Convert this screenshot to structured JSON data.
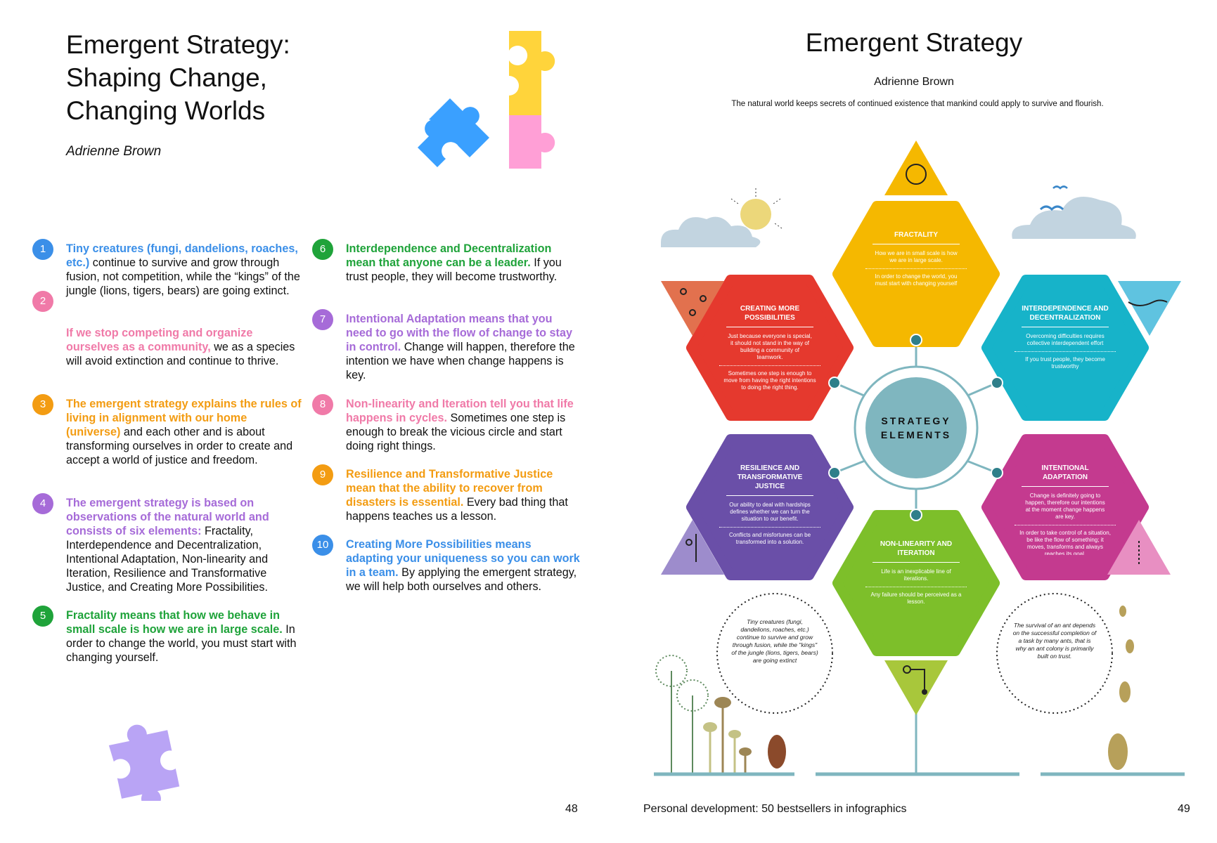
{
  "left": {
    "title_lines": [
      "Emergent Strategy:",
      "Shaping Change,",
      "Changing Worlds"
    ],
    "author": "Adrienne Brown",
    "page_number": "48",
    "items": [
      {
        "num": "1",
        "highlight": "Tiny creatures (fungi, dandelions, roaches, etc.)",
        "rest": " continue to survive and grow through fusion, not competition, while the “kings” of the jungle (lions, tigers, bears) are going extinct.",
        "color": "#3b8fe8"
      },
      {
        "num": "2",
        "highlight": "If we stop competing and organize ourselves as a community,",
        "rest": " we as a species will avoid extinction and continue to thrive.",
        "color": "#f07aa8"
      },
      {
        "num": "3",
        "highlight": "The emergent strategy explains the rules of living in alignment with our home (universe)",
        "rest": " and each other and is about transforming ourselves in order to create and accept a world of justice and freedom.",
        "color": "#f39c12"
      },
      {
        "num": "4",
        "highlight": "The emergent strategy is based on observations of the natural world and consists of six elements:",
        "rest": " Fractality, Interdependence and Decentralization, Intentional Adaptation, Non-linearity and Iteration, Resilience and Transformative Justice, and Creating More Possibilities.",
        "color": "#a66bd8"
      },
      {
        "num": "5",
        "highlight": "Fractality means that how we behave in small scale is how we are in large scale.",
        "rest": " In order to change the world, you must start with changing yourself.",
        "color": "#1fa33a"
      },
      {
        "num": "6",
        "highlight": "Interdependence and Decentralization mean that anyone can be a leader.",
        "rest": " If you trust people, they will become trustworthy.",
        "color": "#1fa33a"
      },
      {
        "num": "7",
        "highlight": "Intentional Adaptation means that you need to go with the flow of change to stay in control.",
        "rest": " Change will happen, therefore the intention we have when change happens is key.",
        "color": "#a66bd8"
      },
      {
        "num": "8",
        "highlight": "Non-linearity and Iteration tell you that life happens in cycles.",
        "rest": " Sometimes one step is enough to break the vicious circle and start doing right things.",
        "color": "#f07aa8"
      },
      {
        "num": "9",
        "highlight": "Resilience and Transformative Justice mean that the ability to recover from disasters is essential.",
        "rest": " Every bad thing that happens teaches us a lesson.",
        "color": "#f39c12"
      },
      {
        "num": "10",
        "highlight": "Creating More Possibilities means adapting your uniqueness so you can work in a team.",
        "rest": " By applying the emergent strategy, we will help both ourselves and others.",
        "color": "#3b8fe8"
      }
    ]
  },
  "right": {
    "title": "Emergent Strategy",
    "author": "Adrienne Brown",
    "subtitle": "The natural world keeps secrets of continued existence that mankind could apply to survive and flourish.",
    "page_number": "49",
    "footer": "Personal development: 50 bestsellers in infographics",
    "center_label_1": "STRATEGY",
    "center_label_2": "ELEMENTS",
    "hexagons": [
      {
        "title": "FRACTALITY",
        "text1": "How we are in small scale is how we are in large scale.",
        "text2": "In order to change the world, you must start with changing yourself",
        "color": "#f5b800"
      },
      {
        "title": "INTERDEPENDENCE AND DECENTRALIZATION",
        "text1": "Overcoming difficulties requires collective interdependent effort",
        "text2": "If you trust people, they become trustworthy",
        "color": "#17b3c9"
      },
      {
        "title": "INTENTIONAL ADAPTATION",
        "text1": "Change is definitely going to happen, therefore our intentions at the moment change happens are key.",
        "text2": "In order to take control of a situation, be like the flow of something; it moves, transforms and always reaches its goal.",
        "color": "#c43a8f"
      },
      {
        "title": "NON-LINEARITY AND ITERATION",
        "text1": "Life is an inexplicable line of iterations.",
        "text2": "Any failure should be perceived as a lesson.",
        "color": "#7dbf2a"
      },
      {
        "title": "RESILIENCE AND TRANSFORMATIVE JUSTICE",
        "text1": "Our ability to deal with hardships defines whether we can turn the situation to our benefit.",
        "text2": "Conflicts and misfortunes can be transformed into a solution.",
        "color": "#6a4fa8"
      },
      {
        "title": "CREATING MORE POSSIBILITIES",
        "text1": "Just because everyone is special, it should not stand in the way of building a community of teamwork.",
        "text2": "Sometimes one step is enough to move from having the right intentions to doing the right thing.",
        "color": "#e5392e"
      }
    ],
    "bubble_left": "Tiny creatures (fungi, dandelions, roaches, etc.) continue to survive and grow through fusion, while the \"kings\" of the jungle (lions, tigers, bears) are going extinct",
    "bubble_right": "The survival of an ant depends on the successful completion of a task by many ants, that is why an ant colony is primarily built on trust."
  }
}
